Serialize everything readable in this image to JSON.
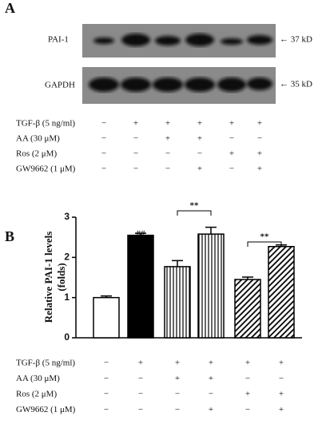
{
  "panel_a": {
    "label": "A",
    "blots": [
      "PAI-1",
      "GAPDH"
    ],
    "sizes": [
      "← 37 kD",
      "← 35 kD"
    ],
    "treatments": [
      {
        "label": "TGF-β (5 ng/ml)",
        "signs": [
          "−",
          "+",
          "+",
          "+",
          "+",
          "+"
        ]
      },
      {
        "label": "AA (30 μM)",
        "signs": [
          "−",
          "−",
          "+",
          "+",
          "−",
          "−"
        ]
      },
      {
        "label": "Ros (2 μM)",
        "signs": [
          "−",
          "−",
          "−",
          "−",
          "+",
          "+"
        ]
      },
      {
        "label": "GW9662 (1 μM)",
        "signs": [
          "−",
          "−",
          "−",
          "+",
          "−",
          "+"
        ]
      }
    ]
  },
  "chart_data": {
    "type": "bar",
    "panel_label": "B",
    "ylabel": [
      "Relative PAI-1 levels",
      "(folds)"
    ],
    "categories": [
      null,
      null,
      null,
      null,
      null,
      null
    ],
    "series": [
      {
        "values": [
          1.0,
          2.55,
          1.77,
          2.58,
          1.45,
          2.27
        ],
        "errors": [
          0.04,
          0.05,
          0.15,
          0.17,
          0.06,
          0.04
        ],
        "fills": [
          "white",
          "black",
          "vertical",
          "vertical",
          "diagonal",
          "diagonal"
        ]
      }
    ],
    "ylim": [
      0,
      3
    ],
    "yticks": [
      0,
      1,
      2,
      3
    ],
    "annotations": [
      "##",
      "**",
      "**"
    ],
    "treatments": [
      {
        "label": "TGF-β (5 ng/ml)",
        "signs": [
          "−",
          "+",
          "+",
          "+",
          "+",
          "+"
        ]
      },
      {
        "label": "AA (30 μM)",
        "signs": [
          "−",
          "−",
          "+",
          "+",
          "−",
          "−"
        ]
      },
      {
        "label": "Ros (2 μM)",
        "signs": [
          "−",
          "−",
          "−",
          "−",
          "+",
          "+"
        ]
      },
      {
        "label": "GW9662 (1 μM)",
        "signs": [
          "−",
          "−",
          "−",
          "+",
          "−",
          "+"
        ]
      }
    ]
  }
}
